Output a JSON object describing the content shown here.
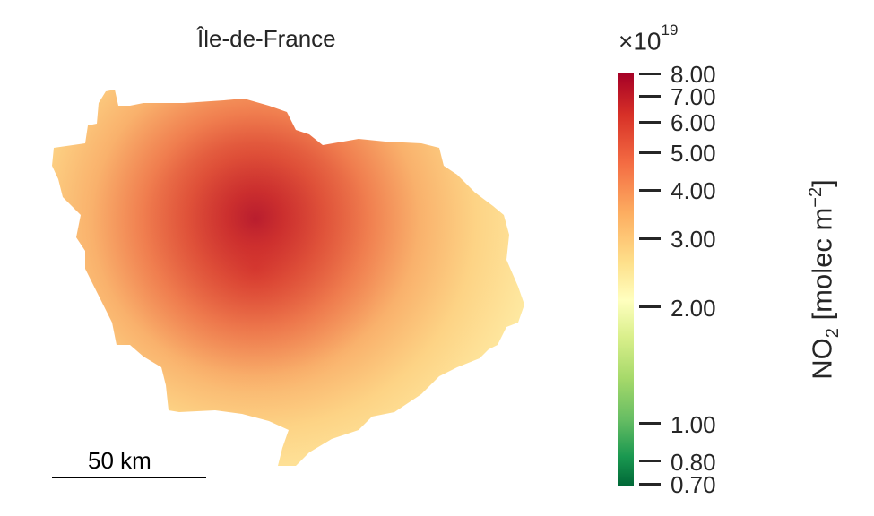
{
  "title": "Île-de-France",
  "scale_bar": {
    "label": "50 km"
  },
  "colorbar": {
    "multiplier_base": "×10",
    "multiplier_exponent": "19",
    "axis_label_main": "NO",
    "axis_label_sub": "2",
    "axis_label_unit": " [molec m",
    "axis_label_exp": "−2",
    "axis_label_close": "]",
    "scale": "log",
    "range": [
      0.7,
      8.0
    ],
    "colormap": "RdYlGn_r",
    "ticks": [
      {
        "value": 8.0,
        "label": "8.00"
      },
      {
        "value": 7.0,
        "label": "7.00"
      },
      {
        "value": 6.0,
        "label": "6.00"
      },
      {
        "value": 5.0,
        "label": "5.00"
      },
      {
        "value": 4.0,
        "label": "4.00"
      },
      {
        "value": 3.0,
        "label": "3.00"
      },
      {
        "value": 2.0,
        "label": "2.00"
      },
      {
        "value": 1.0,
        "label": "1.00"
      },
      {
        "value": 0.8,
        "label": "0.80"
      },
      {
        "value": 0.7,
        "label": "0.70"
      }
    ]
  },
  "colors": {
    "high": "#a50026",
    "mid_high": "#f46d43",
    "mid": "#fee08b",
    "center": "#ffffbf",
    "mid_low": "#d9ef8b",
    "low": "#006837"
  },
  "peak_value": 8.0,
  "edge_value": 2.6
}
